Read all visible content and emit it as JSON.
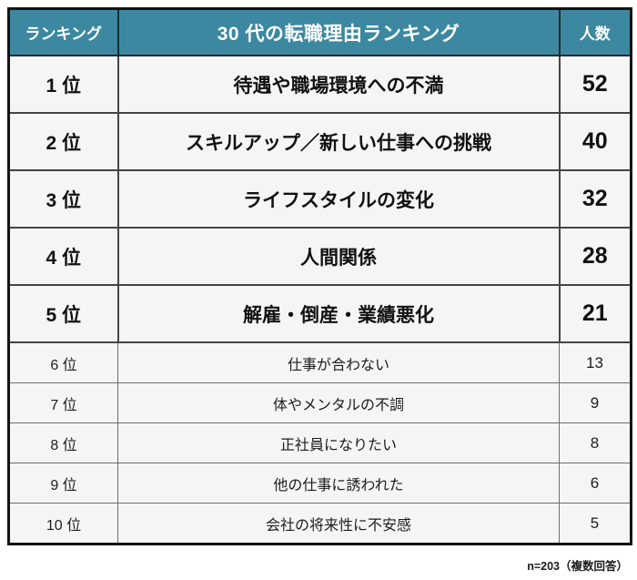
{
  "table": {
    "headers": [
      "ランキング",
      "30 代の転職理由ランキング",
      "人数"
    ],
    "rows": [
      {
        "rank": "1 位",
        "reason": "待遇や職場環境への不満",
        "count": "52"
      },
      {
        "rank": "2 位",
        "reason": "スキルアップ／新しい仕事への挑戦",
        "count": "40"
      },
      {
        "rank": "3 位",
        "reason": "ライフスタイルの変化",
        "count": "32"
      },
      {
        "rank": "4 位",
        "reason": "人間関係",
        "count": "28"
      },
      {
        "rank": "5 位",
        "reason": "解雇・倒産・業績悪化",
        "count": "21"
      },
      {
        "rank": "6 位",
        "reason": "仕事が合わない",
        "count": "13"
      },
      {
        "rank": "7 位",
        "reason": "体やメンタルの不調",
        "count": "9"
      },
      {
        "rank": "8 位",
        "reason": "正社員になりたい",
        "count": "8"
      },
      {
        "rank": "9 位",
        "reason": "他の仕事に誘われた",
        "count": "6"
      },
      {
        "rank": "10 位",
        "reason": "会社の将来性に不安感",
        "count": "5"
      }
    ],
    "footnote": "n=203（複数回答）"
  },
  "colors": {
    "header_bg": "#3c88a0",
    "header_text": "#ffffff",
    "row_bg": "#f5f5f6",
    "outer_border": "#121212"
  },
  "chart_data": {
    "type": "table",
    "title": "30 代の転職理由ランキング",
    "columns": [
      "ランキング",
      "30 代の転職理由ランキング",
      "人数"
    ],
    "ranks": [
      "1 位",
      "2 位",
      "3 位",
      "4 位",
      "5 位",
      "6 位",
      "7 位",
      "8 位",
      "9 位",
      "10 位"
    ],
    "categories": [
      "待遇や職場環境への不満",
      "スキルアップ／新しい仕事への挑戦",
      "ライフスタイルの変化",
      "人間関係",
      "解雇・倒産・業績悪化",
      "仕事が合わない",
      "体やメンタルの不調",
      "正社員になりたい",
      "他の仕事に誘われた",
      "会社の将来性に不安感"
    ],
    "values": [
      52,
      40,
      32,
      28,
      21,
      13,
      9,
      8,
      6,
      5
    ],
    "sample_note": "n=203（複数回答）",
    "emphasized_rows": [
      1,
      2,
      3,
      4,
      5
    ]
  }
}
